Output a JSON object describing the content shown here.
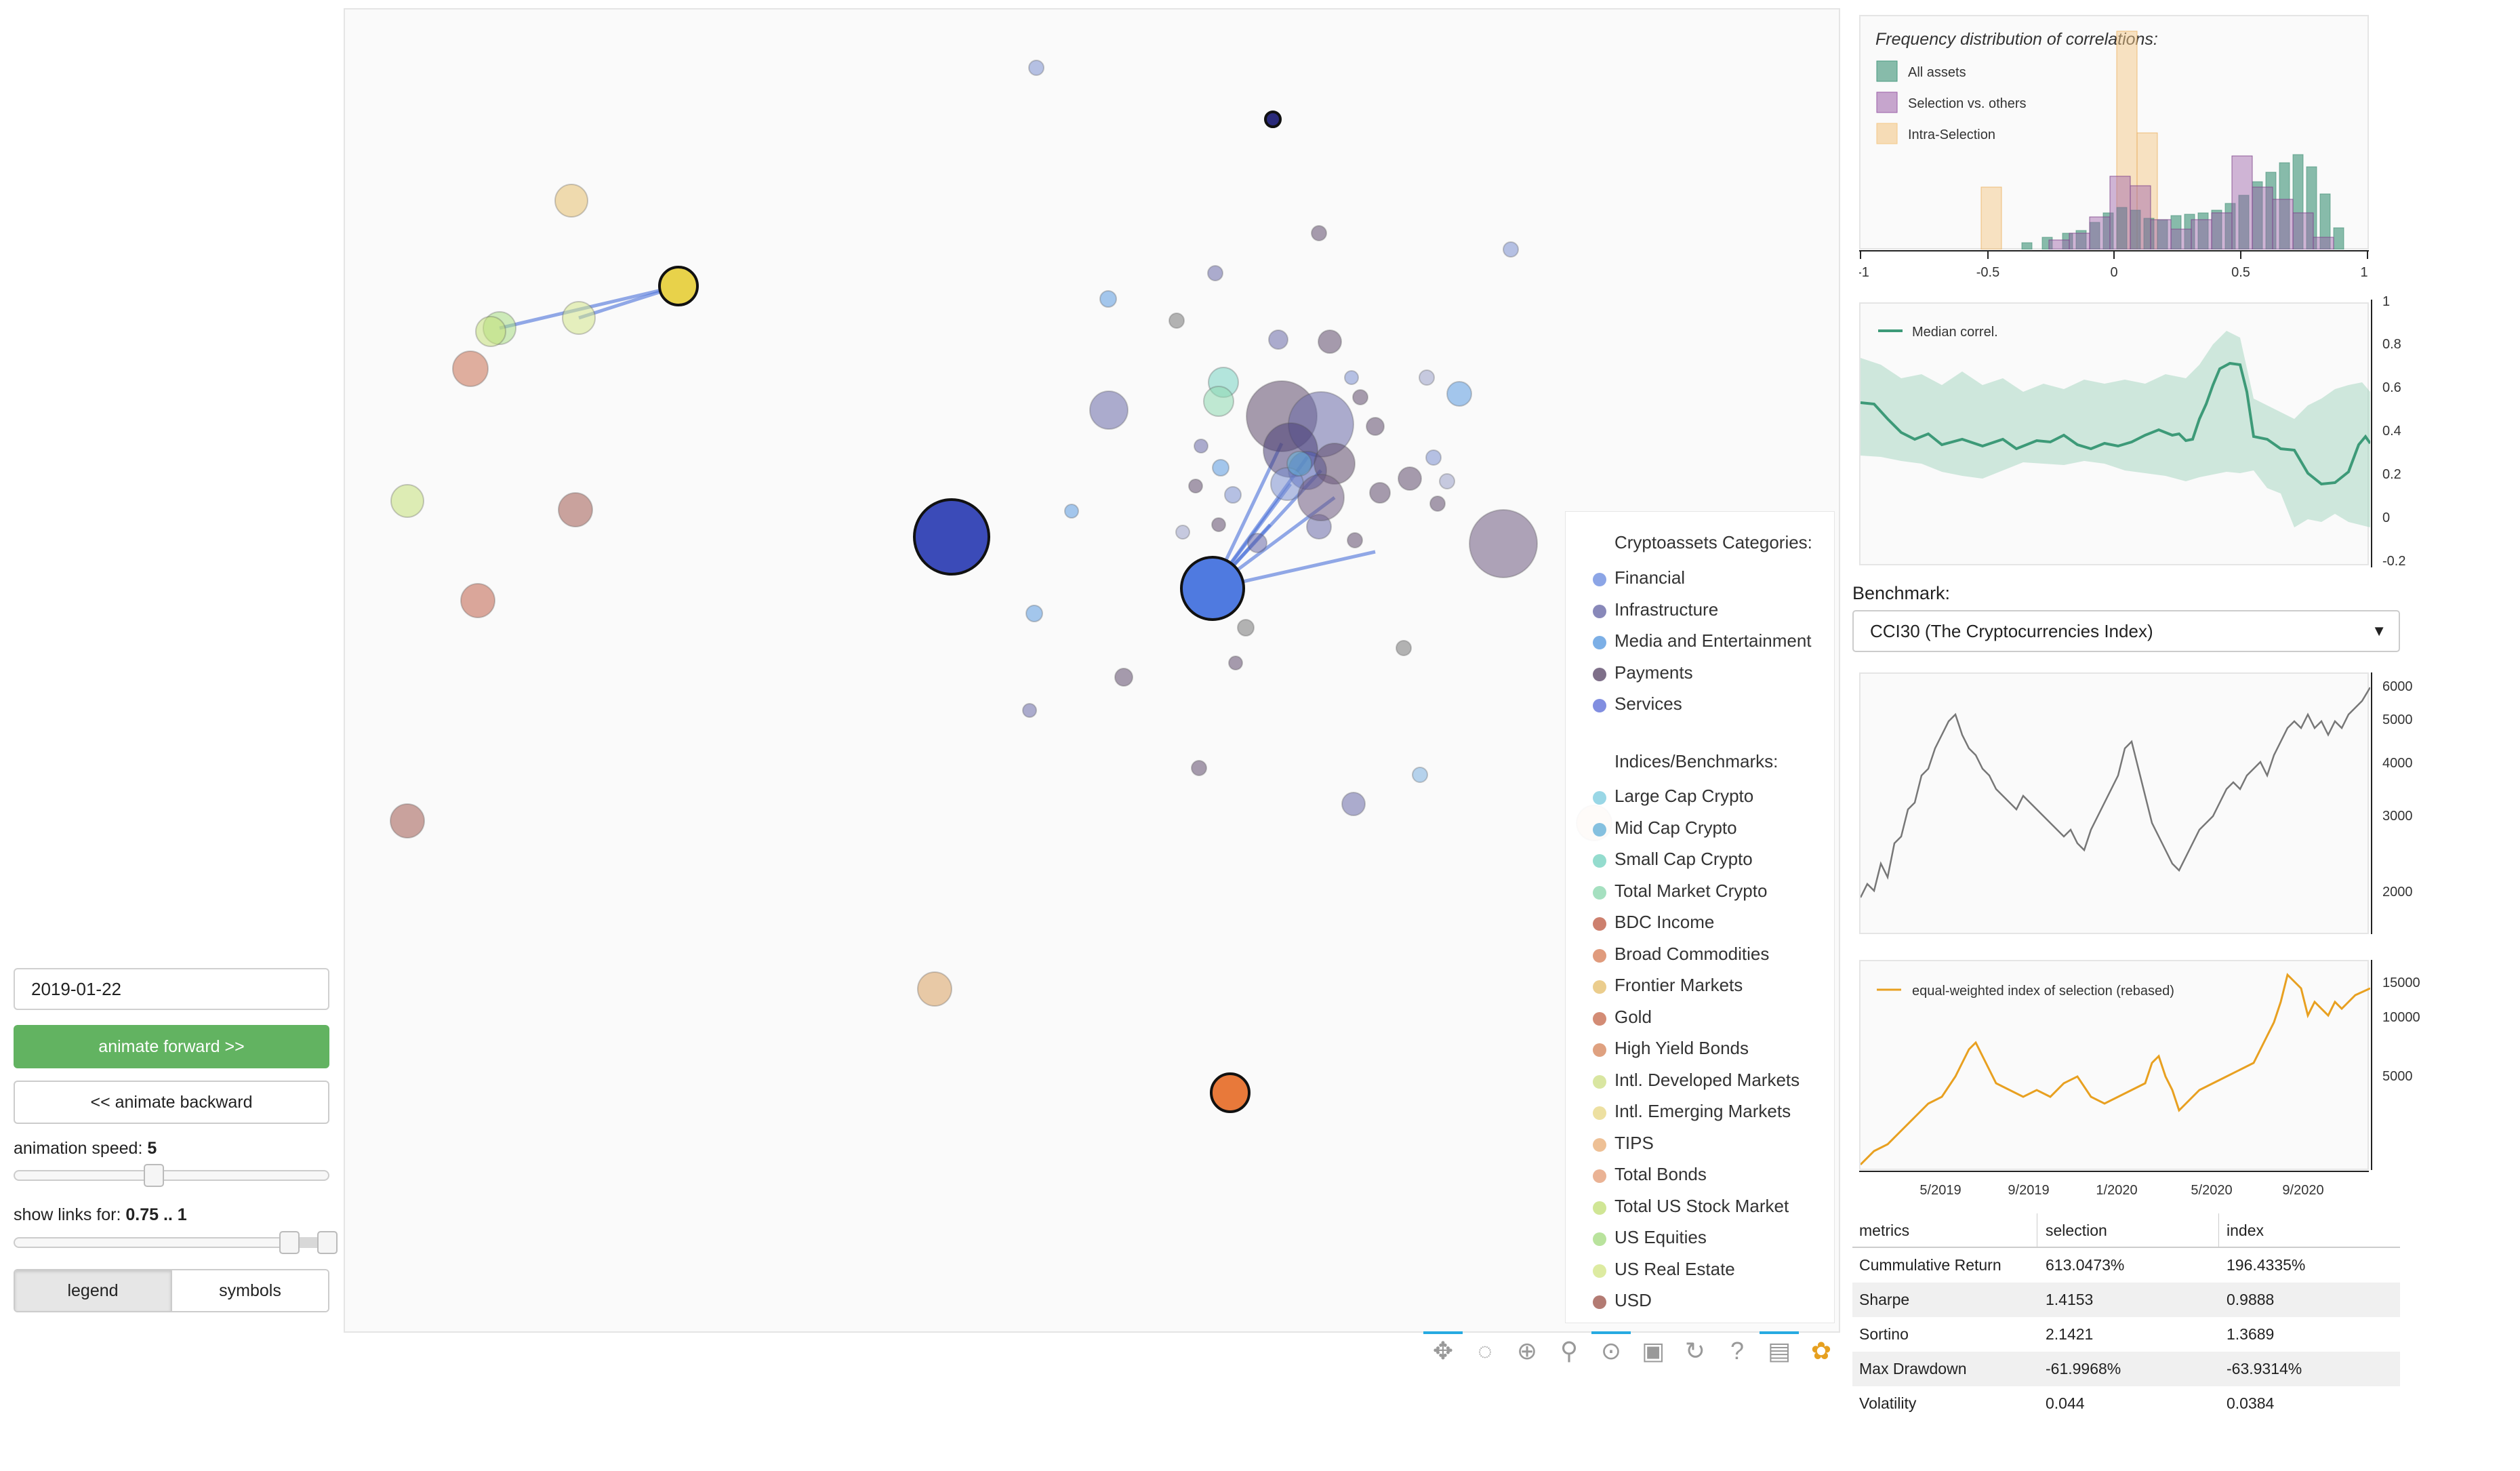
{
  "controls": {
    "date_value": "2019-01-22",
    "animate_forward_label": "animate forward >>",
    "animate_backward_label": "<< animate backward",
    "speed_label": "animation speed: ",
    "speed_value": "5",
    "speed_fraction": 0.4,
    "links_label": "show links for: ",
    "links_value": "0.75 .. 1",
    "links_range": [
      0.75,
      1
    ],
    "toggle": [
      "legend",
      "symbols"
    ],
    "toggle_active": "legend"
  },
  "legend": {
    "categories_heading": "Cryptoassets Categories:",
    "categories": [
      {
        "label": "Financial",
        "color": "#6f8fe0"
      },
      {
        "label": "Infrastructure",
        "color": "#6a6aa8"
      },
      {
        "label": "Media and Entertainment",
        "color": "#5b9be0"
      },
      {
        "label": "Payments",
        "color": "#5e4b6c"
      },
      {
        "label": "Services",
        "color": "#6272d8"
      }
    ],
    "indices_heading": "Indices/Benchmarks:",
    "indices": [
      {
        "label": "Large Cap Crypto",
        "color": "#7fcde0"
      },
      {
        "label": "Mid Cap Crypto",
        "color": "#66b2d8"
      },
      {
        "label": "Small Cap Crypto",
        "color": "#79d3c2"
      },
      {
        "label": "Total Market Crypto",
        "color": "#8ed8b0"
      },
      {
        "label": "BDC Income",
        "color": "#c0604a"
      },
      {
        "label": "Broad Commodities",
        "color": "#d8825c"
      },
      {
        "label": "Frontier Markets",
        "color": "#e6c070"
      },
      {
        "label": "Gold",
        "color": "#c86f52"
      },
      {
        "label": "High Yield Bonds",
        "color": "#d78a60"
      },
      {
        "label": "Intl. Developed Markets",
        "color": "#cfe08a"
      },
      {
        "label": "Intl. Emerging Markets",
        "color": "#e8d88a"
      },
      {
        "label": "TIPS",
        "color": "#eab07a"
      },
      {
        "label": "Total Bonds",
        "color": "#e5a07a"
      },
      {
        "label": "Total US Stock Market",
        "color": "#c4e07a"
      },
      {
        "label": "US Equities",
        "color": "#a8dc84"
      },
      {
        "label": "US Real Estate",
        "color": "#d4e68a"
      },
      {
        "label": "USD",
        "color": "#a05a50"
      }
    ]
  },
  "toolbar": {
    "icons": [
      "pan-icon",
      "lasso-icon",
      "box-zoom-icon",
      "zoom-in-out-icon",
      "wheel-zoom-icon",
      "save-icon",
      "reset-icon",
      "help-icon",
      "hover-icon",
      "bokeh-logo"
    ]
  },
  "histogram": {
    "title": "Frequency distribution of correlations:",
    "legend": [
      {
        "label": "All assets",
        "color": "#4a9a80"
      },
      {
        "label": "Selection vs. others",
        "color": "#9b5fa8"
      },
      {
        "label": "Intra-Selection",
        "color": "#f4c888"
      }
    ],
    "xticks": [
      "-1",
      "-0.5",
      "0",
      "0.5",
      "1"
    ]
  },
  "median_chart": {
    "legend": "Median correl.",
    "yticks": [
      "1",
      "0.8",
      "0.6",
      "0.4",
      "0.2",
      "0",
      "-0.2"
    ]
  },
  "benchmark": {
    "label": "Benchmark:",
    "selected": "CCI30 (The Cryptocurrencies Index)"
  },
  "bench_chart": {
    "yticks": [
      "6000",
      "5000",
      "4000",
      "3000",
      "2000"
    ]
  },
  "index_chart": {
    "legend": "equal-weighted index of selection (rebased)",
    "yticks": [
      "15000",
      "10000",
      "5000"
    ],
    "xticks": [
      "5/2019",
      "9/2019",
      "1/2020",
      "5/2020",
      "9/2020"
    ]
  },
  "metrics": {
    "headers": [
      "metrics",
      "selection",
      "index"
    ],
    "rows": [
      [
        "Cummulative Return",
        "613.0473%",
        "196.4335%"
      ],
      [
        "Sharpe",
        "1.4153",
        "0.9888"
      ],
      [
        "Sortino",
        "2.1421",
        "1.3689"
      ],
      [
        "Max Drawdown",
        "-61.9968%",
        "-63.9314%"
      ],
      [
        "Volatility",
        "0.044",
        "0.0384"
      ]
    ]
  }
}
